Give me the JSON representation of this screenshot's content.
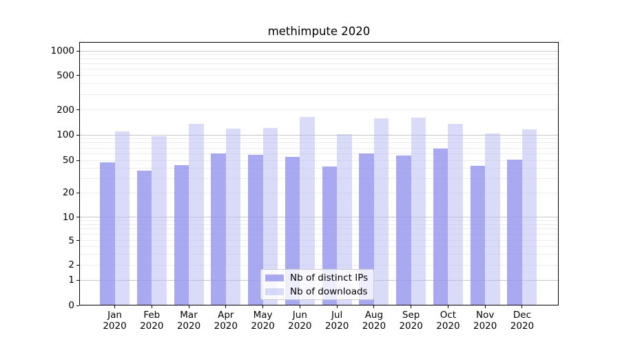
{
  "title": "methimpute 2020",
  "legend": {
    "items": [
      {
        "label": "Nb of distinct IPs",
        "color": "rgba(148,148,238,0.8)"
      },
      {
        "label": "Nb of downloads",
        "color": "rgba(182,182,243,0.5)"
      }
    ]
  },
  "chart_data": {
    "type": "bar",
    "title": "methimpute 2020",
    "categories": [
      "Jan",
      "Feb",
      "Mar",
      "Apr",
      "May",
      "Jun",
      "Jul",
      "Aug",
      "Sep",
      "Oct",
      "Nov",
      "Dec"
    ],
    "category_year": "2020",
    "series": [
      {
        "name": "Nb of distinct IPs",
        "color": "rgba(148,148,238,0.8)",
        "values": [
          47,
          37,
          44,
          60,
          58,
          55,
          42,
          60,
          57,
          69,
          43,
          51
        ]
      },
      {
        "name": "Nb of downloads",
        "color": "rgba(182,182,243,0.5)",
        "values": [
          111,
          96,
          135,
          119,
          121,
          164,
          101,
          159,
          162,
          136,
          103,
          116
        ]
      }
    ],
    "xlabel": "",
    "ylabel": "",
    "yscale": "symlog",
    "y_ticks": [
      0,
      1,
      2,
      5,
      10,
      20,
      50,
      100,
      200,
      500,
      1000
    ],
    "y_minor_gridlines": [
      2,
      3,
      4,
      5,
      6,
      7,
      8,
      9,
      20,
      30,
      40,
      50,
      60,
      70,
      80,
      90,
      200,
      300,
      400,
      500,
      600,
      700,
      800,
      900
    ],
    "y_major_gridlines": [
      1,
      10,
      100,
      1000
    ],
    "ylim": [
      0,
      1000
    ],
    "grid": true,
    "legend_position": "inside-lower-center",
    "colors": {
      "axis": "#000000",
      "grid_major": "#c6c6c6",
      "grid_minor": "#ececec"
    }
  }
}
